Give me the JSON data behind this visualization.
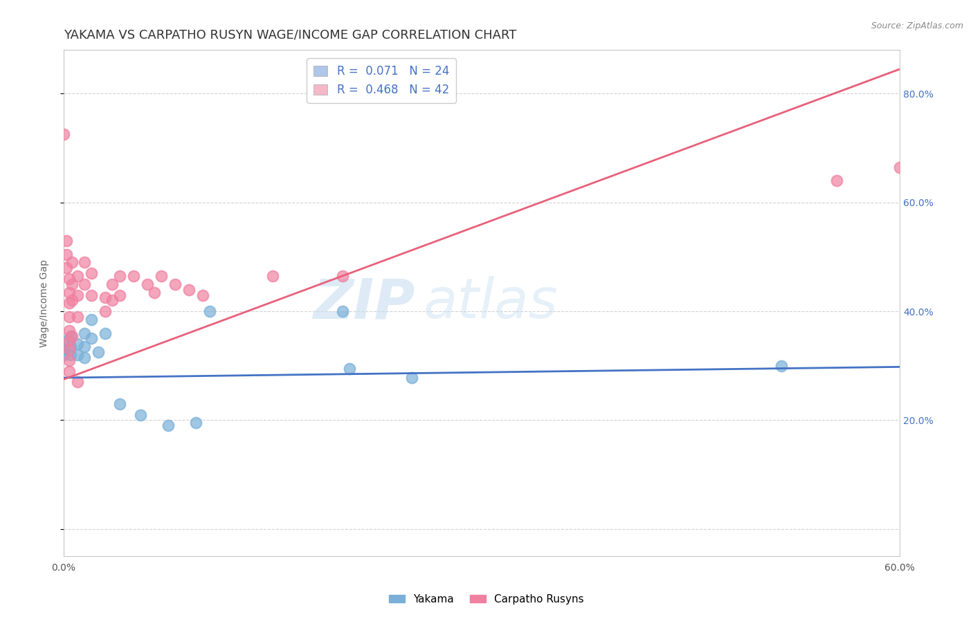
{
  "title": "YAKAMA VS CARPATHO RUSYN WAGE/INCOME GAP CORRELATION CHART",
  "source_text": "Source: ZipAtlas.com",
  "ylabel": "Wage/Income Gap",
  "watermark": "ZIPatlas",
  "xlim": [
    0.0,
    0.6
  ],
  "ylim": [
    -0.05,
    0.88
  ],
  "y_ticks_right": [
    0.0,
    0.2,
    0.4,
    0.6,
    0.8
  ],
  "y_tick_labels_right": [
    "",
    "20.0%",
    "40.0%",
    "60.0%",
    "80.0%"
  ],
  "x_tick_positions": [
    0.0,
    0.1,
    0.2,
    0.3,
    0.4,
    0.5,
    0.6
  ],
  "x_tick_labels": [
    "0.0%",
    "",
    "",
    "",
    "",
    "",
    "60.0%"
  ],
  "legend_items": [
    {
      "label": "R =  0.071   N = 24",
      "color": "#aec6e8"
    },
    {
      "label": "R =  0.468   N = 42",
      "color": "#f4b8c8"
    }
  ],
  "legend_label_yakama": "Yakama",
  "legend_label_carpatho": "Carpatho Rusyns",
  "yakama_color": "#7ab0d8",
  "carpatho_color": "#f080a0",
  "yakama_line_color": "#4472c4",
  "carpatho_line_color": "#e8607a",
  "background_color": "#ffffff",
  "grid_color": "#cccccc",
  "yakama_points": [
    [
      0.0,
      0.345
    ],
    [
      0.0,
      0.33
    ],
    [
      0.0,
      0.32
    ],
    [
      0.005,
      0.355
    ],
    [
      0.005,
      0.335
    ],
    [
      0.005,
      0.32
    ],
    [
      0.01,
      0.34
    ],
    [
      0.01,
      0.32
    ],
    [
      0.015,
      0.36
    ],
    [
      0.015,
      0.335
    ],
    [
      0.015,
      0.315
    ],
    [
      0.02,
      0.385
    ],
    [
      0.02,
      0.35
    ],
    [
      0.025,
      0.325
    ],
    [
      0.03,
      0.36
    ],
    [
      0.04,
      0.23
    ],
    [
      0.055,
      0.21
    ],
    [
      0.075,
      0.19
    ],
    [
      0.095,
      0.195
    ],
    [
      0.105,
      0.4
    ],
    [
      0.2,
      0.4
    ],
    [
      0.205,
      0.295
    ],
    [
      0.25,
      0.278
    ],
    [
      0.515,
      0.3
    ]
  ],
  "carpatho_points": [
    [
      0.0,
      0.725
    ],
    [
      0.002,
      0.53
    ],
    [
      0.002,
      0.505
    ],
    [
      0.002,
      0.48
    ],
    [
      0.004,
      0.46
    ],
    [
      0.004,
      0.435
    ],
    [
      0.004,
      0.415
    ],
    [
      0.004,
      0.39
    ],
    [
      0.004,
      0.365
    ],
    [
      0.004,
      0.345
    ],
    [
      0.004,
      0.33
    ],
    [
      0.004,
      0.31
    ],
    [
      0.004,
      0.29
    ],
    [
      0.006,
      0.49
    ],
    [
      0.006,
      0.45
    ],
    [
      0.006,
      0.42
    ],
    [
      0.006,
      0.355
    ],
    [
      0.01,
      0.465
    ],
    [
      0.01,
      0.43
    ],
    [
      0.01,
      0.39
    ],
    [
      0.015,
      0.49
    ],
    [
      0.015,
      0.45
    ],
    [
      0.02,
      0.47
    ],
    [
      0.02,
      0.43
    ],
    [
      0.03,
      0.425
    ],
    [
      0.03,
      0.4
    ],
    [
      0.035,
      0.45
    ],
    [
      0.035,
      0.42
    ],
    [
      0.04,
      0.465
    ],
    [
      0.04,
      0.43
    ],
    [
      0.05,
      0.465
    ],
    [
      0.06,
      0.45
    ],
    [
      0.065,
      0.435
    ],
    [
      0.07,
      0.465
    ],
    [
      0.08,
      0.45
    ],
    [
      0.09,
      0.44
    ],
    [
      0.1,
      0.43
    ],
    [
      0.15,
      0.465
    ],
    [
      0.2,
      0.465
    ],
    [
      0.01,
      0.27
    ],
    [
      0.555,
      0.64
    ],
    [
      0.6,
      0.665
    ]
  ],
  "title_fontsize": 13,
  "axis_fontsize": 10,
  "tick_fontsize": 10,
  "legend_fontsize": 12
}
